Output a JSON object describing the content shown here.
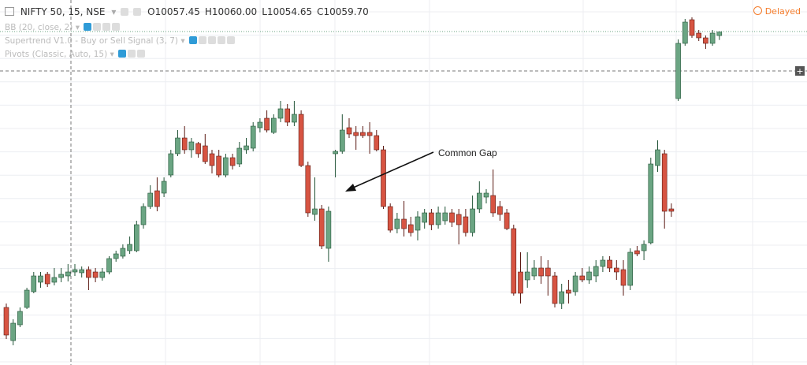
{
  "header": {
    "symbol": "NIFTY 50, 15, NSE",
    "ohlc": [
      {
        "label": "O",
        "value": "10057.45"
      },
      {
        "label": "H",
        "value": "10060.00"
      },
      {
        "label": "L",
        "value": "10054.65"
      },
      {
        "label": "C",
        "value": "10059.70"
      }
    ],
    "indicators": [
      "BB (20, close, 2)",
      "Supertrend V1.0 - Buy or Sell Signal (3, 7)",
      "Pivots (Classic, Auto, 15)"
    ],
    "status": "Delayed"
  },
  "chart_data": {
    "type": "candlestick",
    "annotation": "Common Gap",
    "ylim": [
      9848.5,
      10080
    ],
    "up_color": "#6ba583",
    "down_color": "#d75442",
    "open": [
      9885,
      9864,
      9874,
      9885,
      9895,
      9901,
      9906,
      9901,
      9904,
      9905,
      9907.5,
      9907,
      9909,
      9907.5,
      9904,
      9907.5,
      9916,
      9917.5,
      9921,
      9921,
      9937.5,
      9949,
      9959,
      9957.5,
      9969,
      9982.5,
      9992.5,
      9985,
      9989,
      9987.5,
      9982.5,
      9981,
      9969,
      9980,
      9976,
      9985,
      9986,
      9999,
      10005,
      9996,
      10005,
      10011,
      10002.5,
      10007.5,
      9975,
      9944,
      9947.5,
      9922.5,
      9982.5,
      9984,
      9999,
      9996,
      9996,
      9996,
      9994,
      9985,
      9949,
      9935,
      9941,
      9937.5,
      9934,
      9939,
      9945,
      9937.5,
      9940,
      9945,
      9944,
      9942.5,
      9932.5,
      9947.5,
      9955,
      9956,
      9949,
      9945,
      9935,
      9907.5,
      9902.5,
      9905,
      9910,
      9910,
      9905,
      9887.5,
      9896,
      9895,
      9905,
      9902.5,
      9905,
      9911,
      9915,
      9910,
      9909,
      9899,
      9921,
      9921,
      9926,
      9975,
      9982.5,
      9947.5,
      10017.5,
      10052.5,
      10067.5,
      10059,
      10056,
      10052.5,
      10057.45
    ],
    "high": [
      9887.5,
      9877.5,
      9885,
      9897.5,
      9907.5,
      9907.5,
      9907.5,
      9910,
      9910,
      9912.5,
      9912.5,
      9911,
      9911,
      9910,
      9910,
      9917.5,
      9921,
      9925,
      9930,
      9940,
      9951,
      9962.5,
      9967.5,
      9967.5,
      9985,
      9997.5,
      10000,
      9992.5,
      9990,
      9995,
      9985,
      9985,
      9982.5,
      9982.5,
      9990,
      9992.5,
      10002.5,
      10005,
      10010,
      10007.5,
      10016,
      10014,
      10016,
      10010,
      9977.5,
      9967.5,
      9950,
      9949,
      9985,
      10007.5,
      10005,
      10000,
      10000,
      10002.5,
      9997.5,
      9987.5,
      9951,
      9945,
      9952.5,
      9942.5,
      9946,
      9947.5,
      9947.5,
      9949,
      9949,
      9947.5,
      9947.5,
      9947.5,
      9956,
      9965,
      9960,
      9972.5,
      9952.5,
      9947.5,
      9937.5,
      9920,
      9920,
      9915,
      9917.5,
      9915,
      9907.5,
      9900,
      9902.5,
      9907.5,
      9910,
      9911,
      9915,
      9917.5,
      9917.5,
      9915,
      9915,
      9922.5,
      9924,
      9927.5,
      9980,
      9991,
      9985,
      9951,
      10055,
      10068,
      10069,
      10061,
      10057.5,
      10061,
      10060
    ],
    "low": [
      9865,
      9861,
      9872.5,
      9884,
      9894,
      9897.5,
      9898,
      9899,
      9901,
      9901.5,
      9905,
      9904,
      9896,
      9901,
      9902,
      9906,
      9914,
      9916,
      9919,
      9920,
      9935,
      9947.5,
      9946,
      9955,
      9967.5,
      9981,
      9982.5,
      9980,
      9980,
      9976,
      9970,
      9967.5,
      9967.5,
      9972.5,
      9974,
      9982.5,
      9984,
      9996,
      9996,
      9995,
      10002.5,
      10000,
      10000,
      9974,
      9942.5,
      9940,
      9922,
      9914,
      9967.5,
      9982.5,
      9992.5,
      9985,
      9992.5,
      9982.5,
      9984,
      9947.5,
      9932.5,
      9932,
      9930,
      9930,
      9927.5,
      9935,
      9934,
      9935,
      9937.5,
      9936,
      9925,
      9930,
      9930,
      9945,
      9951,
      9942.5,
      9940,
      9934,
      9892.5,
      9887.5,
      9897.5,
      9902.5,
      9900,
      9892.5,
      9885,
      9884,
      9887.5,
      9892.5,
      9901,
      9900,
      9901,
      9907.5,
      9907.5,
      9902.5,
      9892.5,
      9896,
      9917.5,
      9915,
      9925,
      9971,
      9935,
      9942.5,
      10016,
      10051,
      10056,
      10054,
      10049,
      10051,
      10054.65
    ],
    "close": [
      9867.5,
      9875,
      9882.5,
      9896,
      9905,
      9905,
      9900,
      9904,
      9906,
      9907.5,
      9909,
      9909,
      9904,
      9904,
      9907.5,
      9916,
      9919,
      9922.5,
      9925,
      9937.5,
      9949,
      9957.5,
      9949,
      9965,
      9982.5,
      9992.5,
      9985,
      9990,
      9982.5,
      9977.5,
      9975,
      9969,
      9980,
      9975,
      9986,
      9987.5,
      10000,
      10002.5,
      9997.5,
      10005,
      10011,
      10002.5,
      10007.5,
      9975,
      9945,
      9947.5,
      9924,
      9946,
      9984,
      9997.5,
      9995,
      9994,
      9994,
      9994,
      9985,
      9949,
      9934,
      9941,
      9935,
      9932.5,
      9942.5,
      9945,
      9937.5,
      9945,
      9945,
      9939,
      9937.5,
      9932.5,
      9947.5,
      9957.5,
      9957.5,
      9945,
      9944,
      9935,
      9894,
      9894,
      9907.5,
      9910,
      9905,
      9905,
      9887.5,
      9895,
      9894,
      9905,
      9902.5,
      9907.5,
      9911,
      9915,
      9910,
      9907.5,
      9899,
      9920,
      9919,
      9925,
      9976,
      9985,
      9946,
      9946,
      10052.5,
      10066,
      10057.5,
      10056,
      10052.5,
      10059,
      10059.7
    ]
  }
}
